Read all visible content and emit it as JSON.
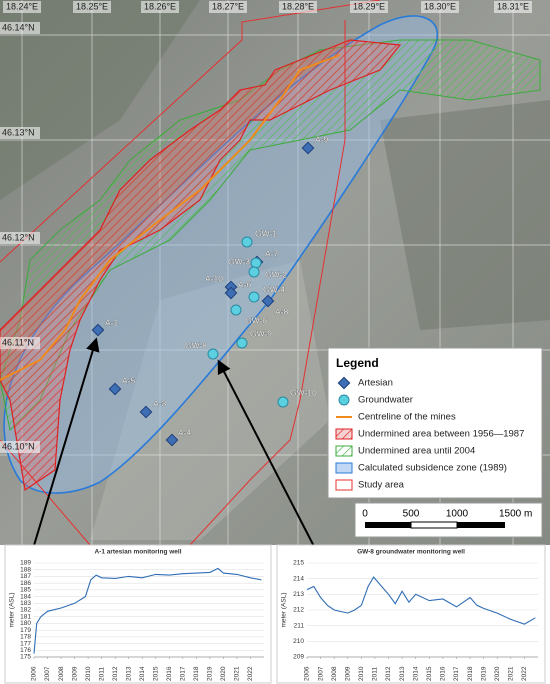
{
  "map": {
    "longitude_labels": [
      "18.24°E",
      "18.25°E",
      "18.26°E",
      "18.27°E",
      "18.28°E",
      "18.29°E",
      "18.30°E",
      "18.31°E"
    ],
    "latitude_labels": [
      "46.14°N",
      "46.13°N",
      "46.12°N",
      "46.11°N",
      "46.10°N"
    ],
    "artesian_wells": [
      "A-9",
      "A-7",
      "A-10",
      "A-6",
      "A-8",
      "A-1",
      "A-5",
      "A-3",
      "A-4"
    ],
    "groundwater_wells": [
      "GW-1",
      "GW-3",
      "GW-2",
      "GW-4",
      "GW-6",
      "GW-9",
      "GW-8",
      "GW-10"
    ],
    "legend": {
      "title": "Legend",
      "items": [
        "Artesian",
        "Groundwater",
        "Centreline of the mines",
        "Undermined area between 1956—1987",
        "Undermined area until 2004",
        "Calculated subsidence zone (1989)",
        "Study area"
      ]
    },
    "scale_bar": [
      "0",
      "500",
      "1000",
      "1500 m"
    ]
  },
  "chart_data": [
    {
      "type": "line",
      "title": "A-1 artesian monitoring well",
      "y_label": "meter (ASL)",
      "color": "#2f6db5",
      "x": [
        2006,
        2006.2,
        2006.5,
        2007,
        2008,
        2009,
        2009.8,
        2010.2,
        2010.6,
        2011,
        2012,
        2013,
        2014,
        2015,
        2016,
        2017,
        2018,
        2019,
        2019.6,
        2020,
        2021,
        2022,
        2022.8
      ],
      "values": [
        175.5,
        180,
        181,
        181.8,
        182.3,
        183,
        184,
        186.5,
        187.2,
        186.8,
        186.7,
        187,
        186.8,
        187.3,
        187.2,
        187.4,
        187.5,
        187.6,
        188.2,
        187.5,
        187.3,
        186.8,
        186.5
      ],
      "xlim": [
        2006,
        2023
      ],
      "ylim": [
        175,
        189
      ],
      "xticks": [
        2006,
        2007,
        2008,
        2009,
        2010,
        2011,
        2012,
        2013,
        2014,
        2015,
        2016,
        2017,
        2018,
        2019,
        2020,
        2021,
        2022
      ],
      "yticks": [
        175,
        176,
        177,
        178,
        179,
        180,
        181,
        182,
        183,
        184,
        185,
        186,
        187,
        188,
        189
      ],
      "grid": true
    },
    {
      "type": "line",
      "title": "GW-8 groundwater monitoring well",
      "y_label": "meter (ASL)",
      "color": "#2f6db5",
      "x": [
        2006,
        2006.5,
        2007,
        2007.5,
        2008,
        2009,
        2009.5,
        2010,
        2010.5,
        2010.9,
        2011.5,
        2012,
        2012.5,
        2013,
        2013.5,
        2014,
        2015,
        2016,
        2017,
        2018,
        2018.5,
        2019,
        2020,
        2021,
        2022,
        2022.8
      ],
      "values": [
        213.3,
        213.5,
        212.8,
        212.3,
        212,
        211.8,
        212,
        212.3,
        213.5,
        214.1,
        213.5,
        213,
        212.4,
        213.2,
        212.5,
        213,
        212.6,
        212.7,
        212.2,
        212.8,
        212.3,
        212.1,
        211.8,
        211.4,
        211.1,
        211.5
      ],
      "xlim": [
        2006,
        2023
      ],
      "ylim": [
        209,
        215
      ],
      "xticks": [
        2006,
        2007,
        2008,
        2009,
        2010,
        2011,
        2012,
        2013,
        2014,
        2015,
        2016,
        2017,
        2018,
        2019,
        2020,
        2021,
        2022
      ],
      "yticks": [
        209,
        210,
        211,
        212,
        213,
        214,
        215
      ],
      "grid": true
    }
  ]
}
